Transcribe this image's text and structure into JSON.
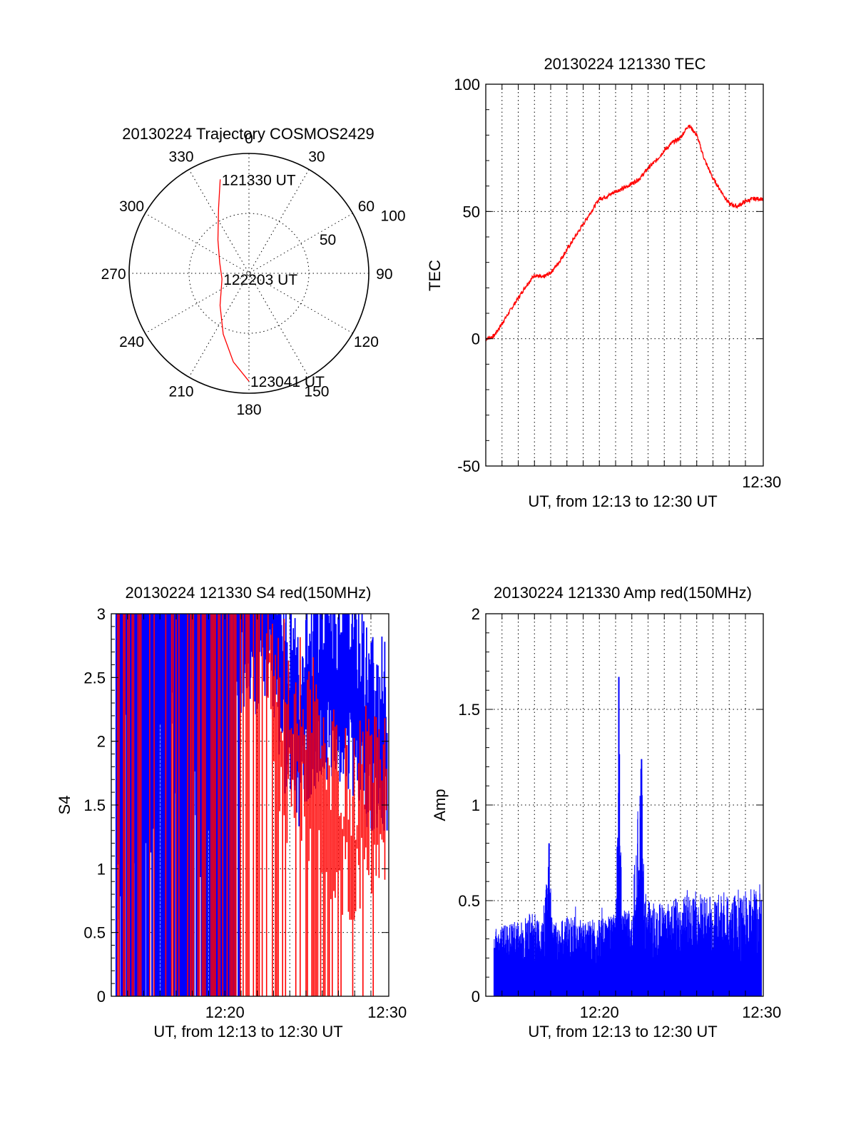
{
  "chart_data": [
    {
      "type": "polar",
      "title": "20130224 Trajectory COSMOS2429",
      "angle_labels": [
        "0",
        "30",
        "60",
        "90",
        "120",
        "150",
        "180",
        "210",
        "240",
        "270",
        "300",
        "330"
      ],
      "radius_ticks": [
        50,
        100
      ],
      "rlim": [
        0,
        100
      ],
      "grid": true,
      "series": [
        {
          "color": "#ff0000",
          "points": [
            {
              "azimuth": 343,
              "radius": 82
            },
            {
              "azimuth": 335,
              "radius": 60
            },
            {
              "azimuth": 317,
              "radius": 38
            },
            {
              "azimuth": 290,
              "radius": 26
            },
            {
              "azimuth": 258,
              "radius": 23
            },
            {
              "azimuth": 222,
              "radius": 36
            },
            {
              "azimuth": 203,
              "radius": 55
            },
            {
              "azimuth": 190,
              "radius": 75
            },
            {
              "azimuth": 180,
              "radius": 90
            }
          ]
        }
      ],
      "annotations": [
        {
          "text": "121330 UT",
          "azimuth": 343,
          "radius": 82
        },
        {
          "text": "122203 UT",
          "azimuth": 258,
          "radius": 23
        },
        {
          "text": "123041 UT",
          "azimuth": 180,
          "radius": 90
        }
      ]
    },
    {
      "type": "line",
      "title": "20130224 121330 TEC",
      "xlabel": "UT, from 12:13 to 12:30 UT",
      "ylabel": "TEC",
      "xlim": [
        0,
        17.1
      ],
      "ylim": [
        -50,
        100
      ],
      "yticks": [
        -50,
        0,
        50,
        100
      ],
      "xtick_labels": [
        {
          "x": 17,
          "label": "12:30"
        }
      ],
      "grid": true,
      "series": [
        {
          "color": "#ff0000",
          "x": [
            0,
            0.5,
            1,
            1.5,
            2,
            2.5,
            3,
            3.5,
            4,
            4.5,
            5,
            5.5,
            6,
            6.5,
            7,
            7.5,
            8,
            8.5,
            9,
            9.5,
            10,
            10.5,
            11,
            11.5,
            12,
            12.5,
            13,
            13.5,
            14,
            14.5,
            15,
            15.5,
            16,
            16.5,
            17,
            17.1
          ],
          "y": [
            0,
            1,
            6,
            11,
            16,
            21,
            25,
            24,
            26,
            30,
            35,
            40,
            45,
            50,
            55,
            56,
            58,
            59,
            61,
            63,
            67,
            70,
            74,
            77,
            79,
            84,
            80,
            70,
            63,
            58,
            53,
            52,
            54,
            55,
            55,
            54
          ]
        }
      ]
    },
    {
      "type": "line",
      "title": "20130224 121330 S4 red(150MHz)",
      "xlabel": "UT, from 12:13 to 12:30 UT",
      "ylabel": "S4",
      "xlim": [
        0,
        17.1
      ],
      "ylim": [
        0,
        3
      ],
      "yticks": [
        0,
        0.5,
        1,
        1.5,
        2,
        2.5,
        3
      ],
      "ytick_labels": [
        "0",
        "0.5",
        "1",
        "1.5",
        "2",
        "2.5",
        "3"
      ],
      "xtick_labels": [
        {
          "x": 7,
          "label": "12:20"
        },
        {
          "x": 17,
          "label": "12:30"
        }
      ],
      "grid": true,
      "series": [
        {
          "color": "#0000ff",
          "note_values": "dense noisy trace, mostly saturated at 3 before 12:22, ~1.5-3 afterwards",
          "x": [
            0.3,
            1,
            2,
            3,
            4,
            5,
            6,
            7,
            8,
            9,
            10,
            10.5,
            11,
            11.5,
            12,
            13,
            14,
            15,
            16,
            17
          ],
          "y": [
            1.5,
            3,
            3,
            3,
            3,
            3,
            3,
            3,
            3,
            3,
            3,
            2.5,
            2.2,
            2.1,
            2.3,
            2.4,
            2.5,
            2.3,
            2.0,
            1.9
          ]
        },
        {
          "color": "#ff0000",
          "x": [
            0.3,
            1,
            2,
            3,
            4,
            5,
            6,
            7,
            8,
            9,
            10,
            10.5,
            11,
            11.5,
            12,
            13,
            14,
            15,
            16,
            17
          ],
          "y": [
            3,
            3,
            3,
            3,
            3,
            3,
            3,
            3,
            3,
            3,
            2.5,
            2.0,
            1.9,
            2.0,
            1.8,
            1.6,
            1.3,
            1.2,
            1.5,
            1.6
          ]
        }
      ]
    },
    {
      "type": "line",
      "title": "20130224 121330 Amp red(150MHz)",
      "xlabel": "UT, from 12:13 to 12:30 UT",
      "ylabel": "Amp",
      "xlim": [
        0,
        17.1
      ],
      "ylim": [
        0,
        2
      ],
      "yticks": [
        0,
        0.5,
        1,
        1.5,
        2
      ],
      "ytick_labels": [
        "0",
        "0.5",
        "1",
        "1.5",
        "2"
      ],
      "xtick_labels": [
        {
          "x": 7,
          "label": "12:20"
        },
        {
          "x": 17,
          "label": "12:30"
        }
      ],
      "grid": true,
      "series": [
        {
          "color": "#0000ff",
          "x": [
            0.5,
            1,
            2,
            3,
            3.5,
            3.9,
            4.1,
            4.5,
            5,
            6,
            7,
            8,
            8.2,
            8.4,
            8.6,
            9,
            9.6,
            9.8,
            10,
            11,
            12,
            13,
            14,
            15,
            16,
            17
          ],
          "y": [
            0.3,
            0.32,
            0.35,
            0.4,
            0.34,
            0.8,
            0.35,
            0.33,
            0.38,
            0.36,
            0.35,
            0.38,
            1.67,
            0.4,
            0.4,
            0.42,
            1.24,
            0.45,
            0.45,
            0.45,
            0.47,
            0.5,
            0.48,
            0.5,
            0.52,
            0.5
          ]
        }
      ]
    }
  ]
}
